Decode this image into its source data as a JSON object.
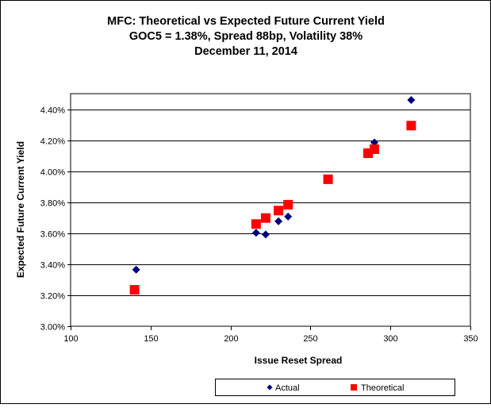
{
  "chart_data": {
    "type": "scatter",
    "title": [
      "MFC: Theoretical vs Expected Future Current Yield",
      "GOC5 = 1.38%, Spread 88bp, Volatility 38%",
      "December 11, 2014"
    ],
    "xlabel": "Issue Reset Spread",
    "ylabel": "Expected Future Current Yield",
    "xlim": [
      100,
      350
    ],
    "ylim": [
      3.0,
      4.5
    ],
    "x_ticks": [
      100,
      150,
      200,
      250,
      300,
      350
    ],
    "x_tick_labels": [
      "100",
      "150",
      "200",
      "250",
      "300",
      "350"
    ],
    "y_ticks": [
      3.0,
      3.2,
      3.4,
      3.6,
      3.8,
      4.0,
      4.2,
      4.4
    ],
    "y_tick_labels": [
      "3.00%",
      "3.20%",
      "3.40%",
      "3.60%",
      "3.80%",
      "4.00%",
      "4.20%",
      "4.40%"
    ],
    "grid": {
      "horizontal": true,
      "vertical": false
    },
    "legend_position": "bottom",
    "series": [
      {
        "name": "Actual",
        "marker": "diamond",
        "color": "#000080",
        "points": [
          {
            "x": 141,
            "y": 3.365
          },
          {
            "x": 216,
            "y": 3.603
          },
          {
            "x": 222,
            "y": 3.592
          },
          {
            "x": 230,
            "y": 3.677
          },
          {
            "x": 236,
            "y": 3.707
          },
          {
            "x": 286,
            "y": 4.125
          },
          {
            "x": 290,
            "y": 4.185
          },
          {
            "x": 313,
            "y": 4.459
          }
        ]
      },
      {
        "name": "Theoretical",
        "marker": "square",
        "color": "#ff0000",
        "points": [
          {
            "x": 140,
            "y": 3.235
          },
          {
            "x": 216,
            "y": 3.659
          },
          {
            "x": 222,
            "y": 3.698
          },
          {
            "x": 230,
            "y": 3.746
          },
          {
            "x": 236,
            "y": 3.784
          },
          {
            "x": 261,
            "y": 3.948
          },
          {
            "x": 286,
            "y": 4.116
          },
          {
            "x": 290,
            "y": 4.142
          },
          {
            "x": 313,
            "y": 4.294
          }
        ]
      }
    ]
  }
}
